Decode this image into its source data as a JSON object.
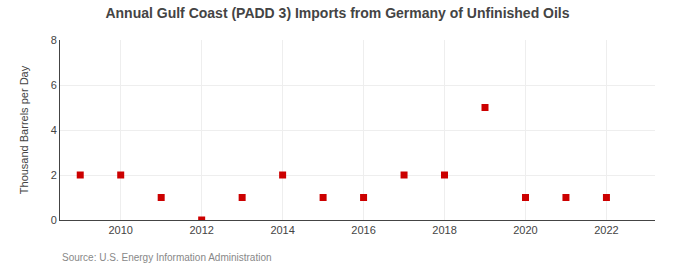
{
  "chart_data": {
    "type": "scatter",
    "title": "Annual Gulf Coast (PADD 3) Imports from Germany of Unfinished Oils",
    "ylabel": "Thousand Barrels per Day",
    "annotations": [
      "Source: U.S. Energy Information Administration"
    ],
    "x": [
      2009,
      2010,
      2011,
      2012,
      2013,
      2014,
      2015,
      2016,
      2017,
      2018,
      2019,
      2020,
      2021,
      2022
    ],
    "values": [
      2,
      2,
      1,
      0,
      1,
      2,
      1,
      1,
      2,
      2,
      5,
      1,
      1,
      1
    ],
    "color": "#cc0000",
    "marker": "square",
    "xlim": [
      2008.5,
      2023.2
    ],
    "ylim": [
      0,
      8
    ],
    "xticks": [
      2010,
      2012,
      2014,
      2016,
      2018,
      2020,
      2022
    ],
    "yticks": [
      0,
      2,
      4,
      6,
      8
    ],
    "grid": true
  }
}
